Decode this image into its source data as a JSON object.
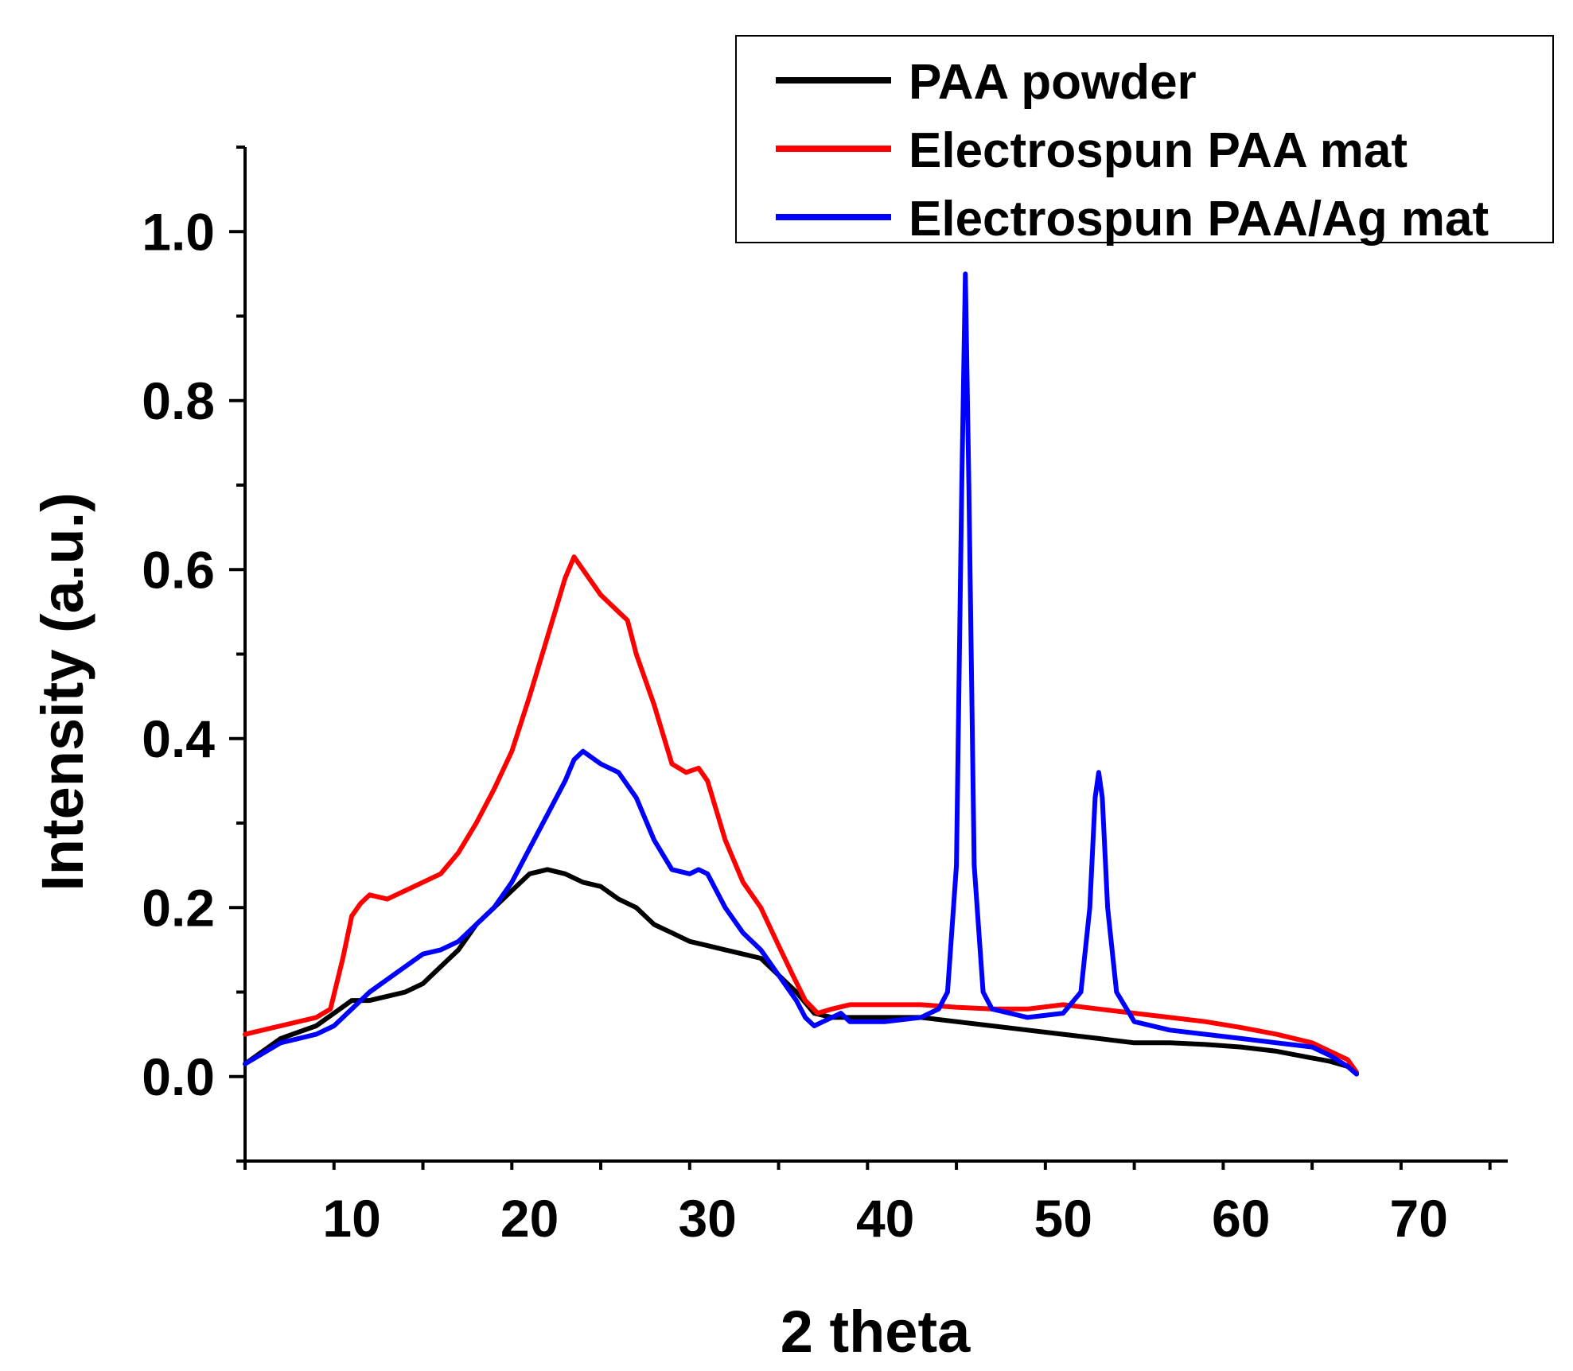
{
  "chart_data": {
    "type": "line",
    "title": "",
    "xlabel": "2 theta",
    "ylabel": "Intensity (a.u.)",
    "xlim": [
      4,
      75
    ],
    "ylim": [
      -0.1,
      1.1
    ],
    "xticks": [
      10,
      20,
      30,
      40,
      50,
      60,
      70
    ],
    "xtick_labels": [
      "10",
      "20",
      "30",
      "40",
      "50",
      "60",
      "70"
    ],
    "yticks": [
      0.0,
      0.2,
      0.4,
      0.6,
      0.8,
      1.0
    ],
    "ytick_labels": [
      "0.0",
      "0.2",
      "0.4",
      "0.6",
      "0.8",
      "1.0"
    ],
    "grid": false,
    "legend_position": "top-right",
    "series": [
      {
        "name": "PAA powder",
        "color": "#000000",
        "x": [
          4,
          6,
          8,
          9,
          10,
          11,
          12,
          13,
          14,
          15,
          16,
          17,
          18,
          19,
          20,
          21,
          22,
          23,
          24,
          25,
          26,
          27,
          28,
          29,
          30,
          31,
          32,
          33,
          34,
          35,
          36,
          37,
          38,
          40,
          42,
          44,
          46,
          48,
          50,
          52,
          54,
          56,
          58,
          60,
          62,
          64,
          65,
          66,
          66.5
        ],
        "y": [
          0.015,
          0.045,
          0.06,
          0.075,
          0.09,
          0.09,
          0.095,
          0.1,
          0.11,
          0.13,
          0.15,
          0.18,
          0.2,
          0.22,
          0.24,
          0.245,
          0.24,
          0.23,
          0.225,
          0.21,
          0.2,
          0.18,
          0.17,
          0.16,
          0.155,
          0.15,
          0.145,
          0.14,
          0.12,
          0.1,
          0.075,
          0.07,
          0.07,
          0.07,
          0.07,
          0.065,
          0.06,
          0.055,
          0.05,
          0.045,
          0.04,
          0.04,
          0.038,
          0.035,
          0.03,
          0.022,
          0.018,
          0.012,
          0.003
        ]
      },
      {
        "name": "Electrospun PAA mat",
        "color": "#ff0000",
        "x": [
          4,
          6,
          8,
          8.8,
          9.5,
          10,
          10.5,
          11,
          12,
          13,
          14,
          15,
          16,
          17,
          18,
          19,
          20,
          21,
          22,
          22.5,
          23,
          24,
          25,
          25.5,
          26,
          27,
          28,
          28.8,
          29.5,
          30,
          31,
          32,
          33,
          34,
          34.8,
          35.5,
          36.2,
          37,
          38,
          40,
          42,
          44,
          46,
          48,
          50,
          52,
          54,
          56,
          58,
          60,
          62,
          64,
          65,
          66,
          66.5
        ],
        "y": [
          0.05,
          0.06,
          0.07,
          0.08,
          0.14,
          0.19,
          0.205,
          0.215,
          0.21,
          0.22,
          0.23,
          0.24,
          0.265,
          0.3,
          0.34,
          0.385,
          0.45,
          0.52,
          0.59,
          0.615,
          0.6,
          0.57,
          0.55,
          0.54,
          0.5,
          0.44,
          0.37,
          0.36,
          0.365,
          0.35,
          0.28,
          0.23,
          0.2,
          0.155,
          0.12,
          0.09,
          0.075,
          0.08,
          0.085,
          0.085,
          0.085,
          0.082,
          0.08,
          0.08,
          0.085,
          0.08,
          0.075,
          0.07,
          0.065,
          0.058,
          0.05,
          0.04,
          0.03,
          0.02,
          0.005
        ]
      },
      {
        "name": "Electrospun PAA/Ag mat",
        "color": "#0000ff",
        "x": [
          4,
          6,
          8,
          9,
          10,
          11,
          12,
          13,
          14,
          15,
          16,
          17,
          18,
          19,
          20,
          21,
          22,
          22.5,
          23,
          24,
          25,
          26,
          27,
          28,
          29,
          29.5,
          30,
          31,
          32,
          33,
          34,
          35,
          35.5,
          36,
          36.5,
          37,
          37.5,
          38,
          40,
          42,
          43,
          43.5,
          44,
          44.3,
          44.5,
          44.7,
          45,
          45.5,
          46,
          47,
          48,
          50,
          51,
          51.5,
          51.8,
          52,
          52.2,
          52.5,
          53,
          54,
          56,
          58,
          60,
          62,
          64,
          65,
          66,
          66.5
        ],
        "y": [
          0.015,
          0.04,
          0.05,
          0.06,
          0.08,
          0.1,
          0.115,
          0.13,
          0.145,
          0.15,
          0.16,
          0.18,
          0.2,
          0.23,
          0.27,
          0.31,
          0.35,
          0.375,
          0.385,
          0.37,
          0.36,
          0.33,
          0.28,
          0.245,
          0.24,
          0.245,
          0.24,
          0.2,
          0.17,
          0.15,
          0.12,
          0.09,
          0.07,
          0.06,
          0.065,
          0.07,
          0.075,
          0.065,
          0.065,
          0.07,
          0.08,
          0.1,
          0.25,
          0.7,
          0.95,
          0.7,
          0.25,
          0.1,
          0.08,
          0.075,
          0.07,
          0.075,
          0.1,
          0.2,
          0.33,
          0.36,
          0.33,
          0.2,
          0.1,
          0.065,
          0.055,
          0.05,
          0.045,
          0.04,
          0.035,
          0.025,
          0.012,
          0.003
        ]
      }
    ]
  }
}
